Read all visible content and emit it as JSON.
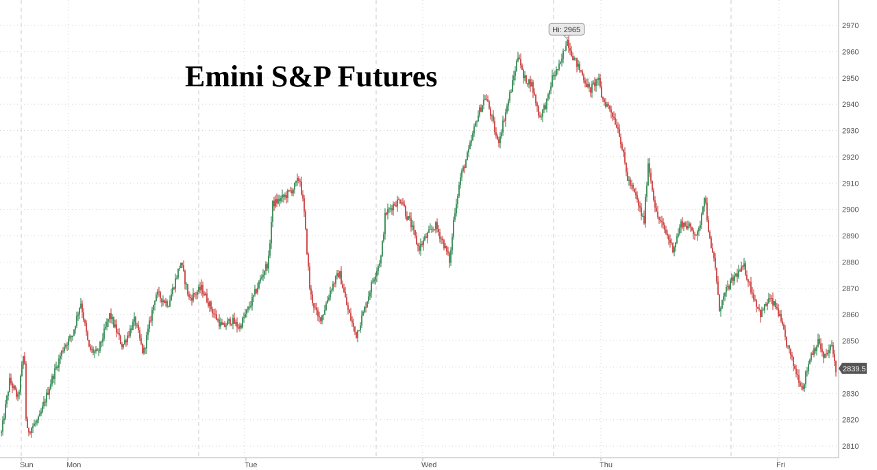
{
  "chart_data": {
    "type": "candlestick",
    "title": "Emini S&P Futures",
    "xlabel": "",
    "ylabel": "",
    "ylim": [
      2805,
      2978
    ],
    "y_ticks": [
      2810,
      2820,
      2830,
      2840,
      2850,
      2860,
      2870,
      2880,
      2890,
      2900,
      2910,
      2920,
      2930,
      2940,
      2950,
      2960,
      2970
    ],
    "x_ticks": [
      "Sun",
      "Mon",
      "Tue",
      "Wed",
      "Thu",
      "Fri"
    ],
    "grid": true,
    "up_color": "#1a7a3c",
    "down_color": "#c62828",
    "high_annotation": {
      "label": "Hi: 2965",
      "value": 2965
    },
    "last_price": {
      "label": "2839.5",
      "value": 2839.5
    },
    "path": [
      [
        0,
        2815
      ],
      [
        2,
        2835
      ],
      [
        4,
        2828
      ],
      [
        5.5,
        2847
      ],
      [
        6,
        2815
      ],
      [
        9,
        2820
      ],
      [
        12,
        2835
      ],
      [
        15,
        2848
      ],
      [
        17,
        2852
      ],
      [
        19,
        2865
      ],
      [
        21,
        2847
      ],
      [
        23,
        2845
      ],
      [
        26,
        2860
      ],
      [
        29,
        2848
      ],
      [
        32,
        2858
      ],
      [
        34,
        2845
      ],
      [
        37,
        2868
      ],
      [
        40,
        2864
      ],
      [
        43,
        2880
      ],
      [
        45,
        2866
      ],
      [
        48,
        2870
      ],
      [
        51,
        2860
      ],
      [
        53,
        2855
      ],
      [
        55,
        2858
      ],
      [
        57,
        2855
      ],
      [
        60,
        2865
      ],
      [
        63,
        2877
      ],
      [
        64,
        2880
      ],
      [
        65,
        2902
      ],
      [
        68,
        2905
      ],
      [
        70,
        2908
      ],
      [
        71.5,
        2912
      ],
      [
        72.5,
        2900
      ],
      [
        74,
        2868
      ],
      [
        76,
        2858
      ],
      [
        77,
        2860
      ],
      [
        79,
        2870
      ],
      [
        81,
        2876
      ],
      [
        83,
        2862
      ],
      [
        85,
        2852
      ],
      [
        87,
        2862
      ],
      [
        89,
        2873
      ],
      [
        91,
        2882
      ],
      [
        92,
        2898
      ],
      [
        94,
        2902
      ],
      [
        96,
        2904
      ],
      [
        97,
        2898
      ],
      [
        98,
        2895
      ],
      [
        100,
        2885
      ],
      [
        102,
        2890
      ],
      [
        104,
        2894
      ],
      [
        106,
        2887
      ],
      [
        107.5,
        2880
      ],
      [
        108.5,
        2898
      ],
      [
        110,
        2912
      ],
      [
        112,
        2922
      ],
      [
        114,
        2935
      ],
      [
        116,
        2943
      ],
      [
        117,
        2938
      ],
      [
        119,
        2925
      ],
      [
        121,
        2938
      ],
      [
        122.5,
        2948
      ],
      [
        124,
        2960
      ],
      [
        125,
        2950
      ],
      [
        127,
        2948
      ],
      [
        129,
        2935
      ],
      [
        131,
        2942
      ],
      [
        132,
        2950
      ],
      [
        134,
        2955
      ],
      [
        135.5,
        2965
      ],
      [
        137,
        2958
      ],
      [
        139,
        2952
      ],
      [
        141,
        2945
      ],
      [
        143,
        2950
      ],
      [
        144,
        2942
      ],
      [
        146,
        2938
      ],
      [
        148,
        2930
      ],
      [
        150,
        2912
      ],
      [
        152,
        2905
      ],
      [
        154,
        2895
      ],
      [
        155,
        2918
      ],
      [
        157,
        2898
      ],
      [
        159,
        2892
      ],
      [
        161,
        2885
      ],
      [
        163,
        2895
      ],
      [
        165,
        2893
      ],
      [
        167,
        2890
      ],
      [
        168.5,
        2906
      ],
      [
        170,
        2885
      ],
      [
        171,
        2880
      ],
      [
        172,
        2862
      ],
      [
        174,
        2870
      ],
      [
        176,
        2875
      ],
      [
        178,
        2878
      ],
      [
        180,
        2868
      ],
      [
        182,
        2860
      ],
      [
        184,
        2866
      ],
      [
        186,
        2862
      ],
      [
        188,
        2850
      ],
      [
        190,
        2840
      ],
      [
        192,
        2832
      ],
      [
        194,
        2845
      ],
      [
        196,
        2850
      ],
      [
        197,
        2843
      ],
      [
        199,
        2848
      ],
      [
        200,
        2839.5
      ]
    ]
  }
}
